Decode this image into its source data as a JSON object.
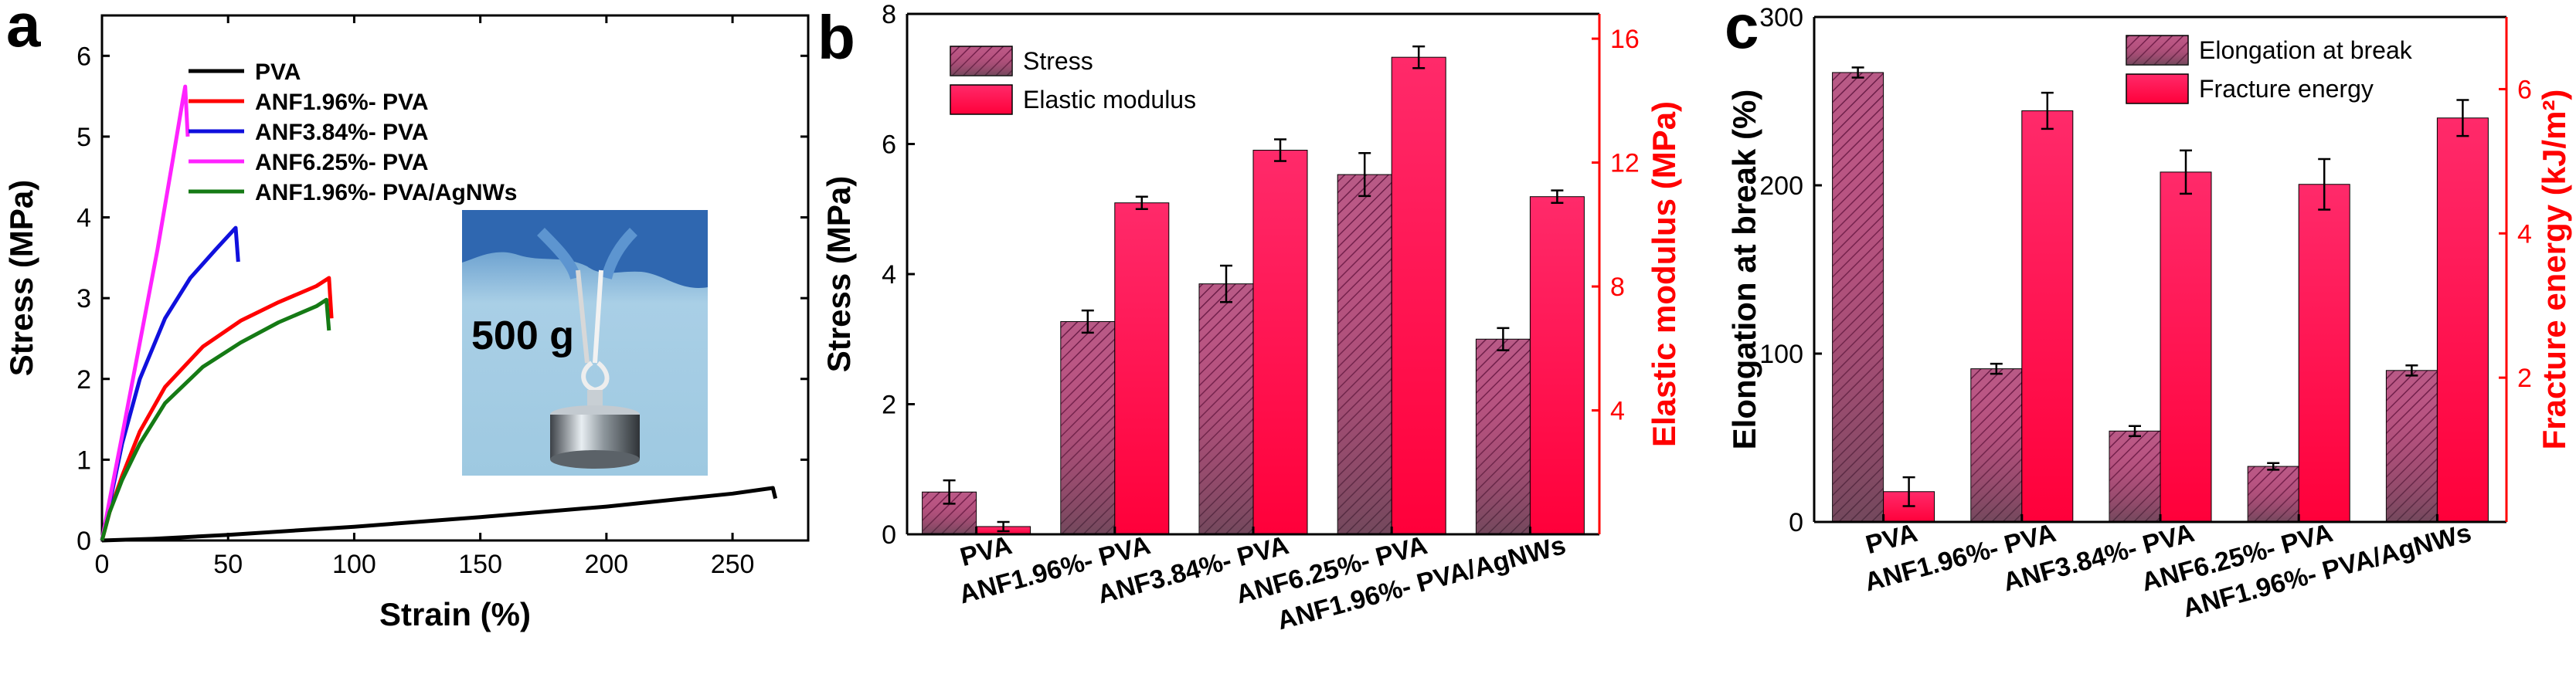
{
  "colors": {
    "black": "#000000",
    "red": "#ff0000",
    "blue": "#1010dd",
    "magenta": "#ff22ff",
    "green": "#157a15",
    "bar_red": "#ff0055",
    "bar_purple": "#b03070",
    "bar_dark": "#5a4a4a"
  },
  "panels": {
    "a": {
      "letter": "a",
      "inset_text": "500 g"
    },
    "b": {
      "letter": "b"
    },
    "c": {
      "letter": "c"
    }
  },
  "chart_data": [
    {
      "type": "line",
      "panel": "a",
      "xlabel": "Strain (%)",
      "ylabel": "Stress (MPa)",
      "xlim": [
        0,
        280
      ],
      "ylim": [
        0,
        6.5
      ],
      "xticks": [
        0,
        50,
        100,
        150,
        200,
        250
      ],
      "yticks": [
        0,
        1,
        2,
        3,
        4,
        5,
        6
      ],
      "legend_position": "top-left",
      "series": [
        {
          "name": "PVA",
          "color": "#000000",
          "points": [
            [
              0,
              0
            ],
            [
              20,
              0.02
            ],
            [
              50,
              0.07
            ],
            [
              100,
              0.17
            ],
            [
              150,
              0.29
            ],
            [
              200,
              0.42
            ],
            [
              250,
              0.58
            ],
            [
              266,
              0.65
            ],
            [
              267,
              0.52
            ]
          ]
        },
        {
          "name": "ANF1.96%- PVA",
          "color": "#ff0000",
          "points": [
            [
              0,
              0
            ],
            [
              3,
              0.35
            ],
            [
              8,
              0.8
            ],
            [
              15,
              1.35
            ],
            [
              25,
              1.9
            ],
            [
              40,
              2.4
            ],
            [
              55,
              2.72
            ],
            [
              70,
              2.95
            ],
            [
              85,
              3.15
            ],
            [
              90,
              3.25
            ],
            [
              91,
              2.75
            ]
          ]
        },
        {
          "name": "ANF3.84%- PVA",
          "color": "#1010dd",
          "points": [
            [
              0,
              0
            ],
            [
              3,
              0.45
            ],
            [
              8,
              1.2
            ],
            [
              15,
              2.0
            ],
            [
              25,
              2.75
            ],
            [
              35,
              3.25
            ],
            [
              45,
              3.6
            ],
            [
              53,
              3.87
            ],
            [
              54,
              3.45
            ]
          ]
        },
        {
          "name": "ANF6.25%- PVA",
          "color": "#ff22ff",
          "points": [
            [
              0,
              0
            ],
            [
              3,
              0.5
            ],
            [
              8,
              1.3
            ],
            [
              15,
              2.45
            ],
            [
              22,
              3.6
            ],
            [
              28,
              4.7
            ],
            [
              32,
              5.45
            ],
            [
              33,
              5.62
            ],
            [
              34,
              5.0
            ]
          ]
        },
        {
          "name": "ANF1.96%- PVA/AgNWs",
          "color": "#157a15",
          "points": [
            [
              0,
              0
            ],
            [
              3,
              0.35
            ],
            [
              8,
              0.75
            ],
            [
              15,
              1.2
            ],
            [
              25,
              1.7
            ],
            [
              40,
              2.15
            ],
            [
              55,
              2.45
            ],
            [
              70,
              2.7
            ],
            [
              85,
              2.9
            ],
            [
              89,
              2.98
            ],
            [
              90,
              2.6
            ]
          ]
        }
      ]
    },
    {
      "type": "bar",
      "panel": "b",
      "categories": [
        "PVA",
        "ANF1.96%- PVA",
        "ANF3.84%- PVA",
        "ANF6.25%- PVA",
        "ANF1.96%- PVA/AgNWs"
      ],
      "ylabel": "Stress (MPa)",
      "ylim": [
        0,
        8
      ],
      "yticks": [
        0,
        2,
        4,
        6,
        8
      ],
      "y2label": "Elastic modulus (MPa)",
      "y2lim": [
        0,
        16.8
      ],
      "y2ticks": [
        4,
        8,
        12,
        16
      ],
      "legend_position": "top-left",
      "series": [
        {
          "name": "Stress",
          "axis": "left",
          "pattern": "hatched",
          "values": [
            0.65,
            3.27,
            3.85,
            5.53,
            3.0
          ],
          "errors": [
            0.18,
            0.17,
            0.28,
            0.33,
            0.17
          ]
        },
        {
          "name": "Elastic modulus",
          "axis": "right",
          "pattern": "solid",
          "values": [
            0.25,
            10.7,
            12.4,
            15.4,
            10.9
          ],
          "errors": [
            0.15,
            0.2,
            0.35,
            0.35,
            0.2
          ]
        }
      ]
    },
    {
      "type": "bar",
      "panel": "c",
      "categories": [
        "PVA",
        "ANF1.96%- PVA",
        "ANF3.84%- PVA",
        "ANF6.25%- PVA",
        "ANF1.96%- PVA/AgNWs"
      ],
      "ylabel": "Elongation at break (%)",
      "ylim": [
        0,
        300
      ],
      "yticks": [
        0,
        100,
        200,
        300
      ],
      "y2label": "Fracture energy (kJ/m²)",
      "y2lim": [
        0,
        7
      ],
      "y2ticks": [
        2,
        4,
        6
      ],
      "legend_position": "top-right",
      "series": [
        {
          "name": "Elongation at break",
          "axis": "left",
          "pattern": "hatched",
          "values": [
            267,
            91,
            54,
            33,
            90
          ],
          "errors": [
            3,
            3,
            3,
            2,
            3
          ]
        },
        {
          "name": "Fracture energy",
          "axis": "right",
          "pattern": "solid",
          "values": [
            0.42,
            5.7,
            4.85,
            4.68,
            5.6
          ],
          "errors": [
            0.2,
            0.25,
            0.3,
            0.35,
            0.25
          ]
        }
      ]
    }
  ]
}
